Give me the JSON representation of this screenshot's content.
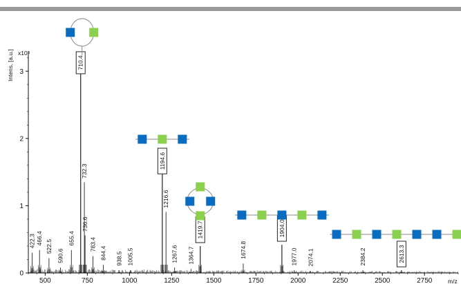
{
  "colors": {
    "blue_unit": "#0a6cc0",
    "green_unit": "#8cd050",
    "trace": "#222222",
    "axis": "#111111"
  },
  "chart_data": {
    "type": "line",
    "title": "",
    "xlabel": "m/z",
    "ylabel": "Intens. [a.u.]",
    "y_exponent": "x10⁴",
    "xlim": [
      400,
      2950
    ],
    "ylim": [
      0,
      3.3
    ],
    "x_ticks": [
      500,
      750,
      1000,
      1250,
      1500,
      1750,
      2000,
      2250,
      2500,
      2750
    ],
    "y_ticks": [
      0,
      1,
      2,
      3
    ],
    "peaks": [
      {
        "mz": 422.3,
        "intensity": 0.3,
        "label": "422.3",
        "boxed": false,
        "dashed": false
      },
      {
        "mz": 466.4,
        "intensity": 0.34,
        "label": "466.4",
        "boxed": false,
        "dashed": false
      },
      {
        "mz": 522.5,
        "intensity": 0.22,
        "label": "522.5",
        "boxed": false,
        "dashed": false
      },
      {
        "mz": 590.6,
        "intensity": 0.08,
        "label": "590.6",
        "boxed": false,
        "dashed": false
      },
      {
        "mz": 655.4,
        "intensity": 0.34,
        "label": "655.4",
        "boxed": false,
        "dashed": false
      },
      {
        "mz": 710.4,
        "intensity": 3.1,
        "label": "710.4",
        "boxed": true,
        "dashed": false
      },
      {
        "mz": 732.3,
        "intensity": 1.34,
        "label": "732.3",
        "boxed": false,
        "dashed": true
      },
      {
        "mz": 736.6,
        "intensity": 0.55,
        "label": "736.6",
        "boxed": false,
        "dashed": true
      },
      {
        "mz": 783.4,
        "intensity": 0.25,
        "label": "783.4",
        "boxed": false,
        "dashed": false
      },
      {
        "mz": 844.4,
        "intensity": 0.12,
        "label": "844.4",
        "boxed": false,
        "dashed": false
      },
      {
        "mz": 938.5,
        "intensity": 0.04,
        "label": "938.5",
        "boxed": false,
        "dashed": false
      },
      {
        "mz": 1005.5,
        "intensity": 0.04,
        "label": "1005.5",
        "boxed": false,
        "dashed": false
      },
      {
        "mz": 1194.6,
        "intensity": 1.6,
        "label": "1194.6",
        "boxed": true,
        "dashed": false
      },
      {
        "mz": 1216.6,
        "intensity": 0.9,
        "label": "1216.6",
        "boxed": false,
        "dashed": true
      },
      {
        "mz": 1267.6,
        "intensity": 0.08,
        "label": "1267.6",
        "boxed": false,
        "dashed": false
      },
      {
        "mz": 1364.7,
        "intensity": 0.06,
        "label": "1364.7",
        "boxed": false,
        "dashed": false
      },
      {
        "mz": 1419.7,
        "intensity": 0.4,
        "label": "1419.7",
        "boxed": true,
        "dashed": false
      },
      {
        "mz": 1674.8,
        "intensity": 0.14,
        "label": "1674.8",
        "boxed": false,
        "dashed": false
      },
      {
        "mz": 1904.0,
        "intensity": 0.42,
        "label": "1904.0",
        "boxed": true,
        "dashed": false
      },
      {
        "mz": 1977.0,
        "intensity": 0.04,
        "label": "1977.0",
        "boxed": false,
        "dashed": false
      },
      {
        "mz": 2074.1,
        "intensity": 0.03,
        "label": "2074.1",
        "boxed": false,
        "dashed": false
      },
      {
        "mz": 2384.2,
        "intensity": 0.04,
        "label": "2384.2",
        "boxed": false,
        "dashed": false
      },
      {
        "mz": 2613.3,
        "intensity": 0.04,
        "label": "2613.3",
        "boxed": true,
        "dashed": false
      }
    ],
    "annotations": [
      {
        "peak": "710.4",
        "structure": "cyclic",
        "units": [
          "blue",
          "green"
        ]
      },
      {
        "peak": "1194.6",
        "structure": "linear",
        "units": [
          "blue",
          "green",
          "blue"
        ]
      },
      {
        "peak": "1419.7",
        "structure": "cyclic",
        "units": [
          "green",
          "blue",
          "green",
          "blue"
        ]
      },
      {
        "peak": "1904.0",
        "structure": "linear",
        "units": [
          "blue",
          "green",
          "blue",
          "green",
          "blue"
        ]
      },
      {
        "peak": "2613.3",
        "structure": "linear",
        "units": [
          "blue",
          "green",
          "blue",
          "green",
          "blue",
          "blue",
          "green",
          "blue"
        ]
      }
    ]
  }
}
